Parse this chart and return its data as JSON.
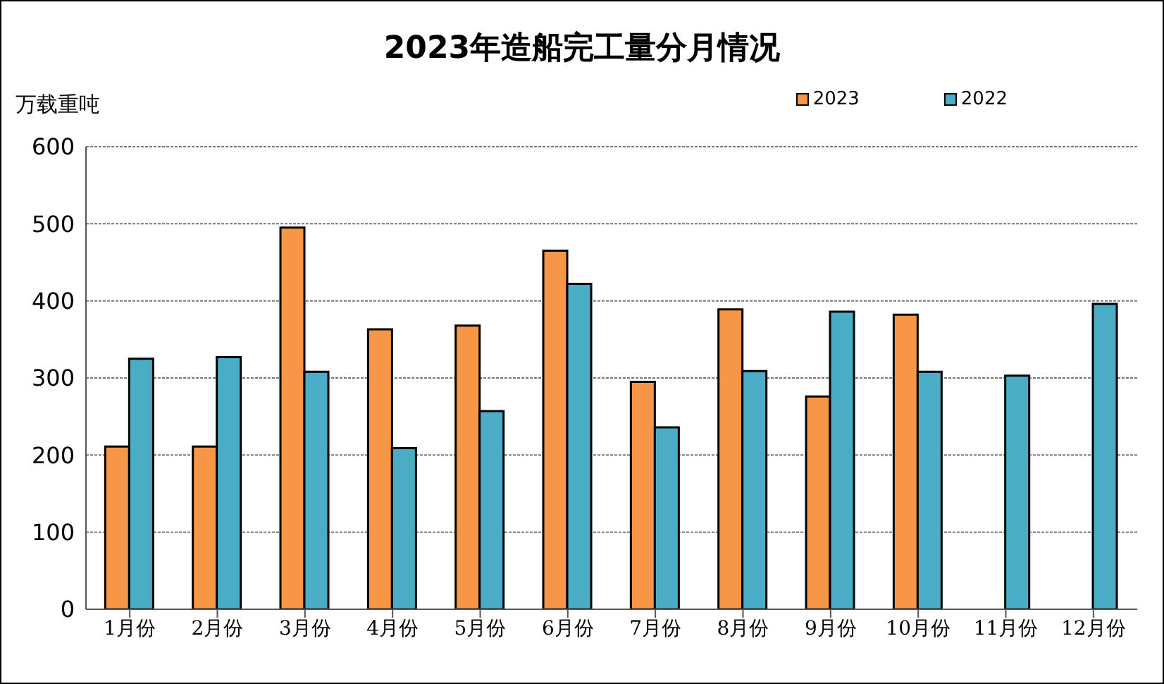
{
  "chart_data": {
    "type": "bar",
    "title": "2023年造船完工量分月情况",
    "ylabel": "万载重吨",
    "categories": [
      "1月份",
      "2月份",
      "3月份",
      "4月份",
      "5月份",
      "6月份",
      "7月份",
      "8月份",
      "9月份",
      "10月份",
      "11月份",
      "12月份"
    ],
    "series": [
      {
        "name": "2023",
        "color": "#f79646",
        "values": [
          211,
          211,
          495,
          363,
          368,
          465,
          295,
          389,
          276,
          382,
          null,
          null
        ]
      },
      {
        "name": "2022",
        "color": "#4bacc6",
        "values": [
          325,
          327,
          308,
          209,
          257,
          422,
          236,
          309,
          386,
          308,
          303,
          396
        ]
      }
    ],
    "ylim": [
      0,
      600
    ],
    "yticks": [
      0,
      100,
      200,
      300,
      400,
      500,
      600
    ],
    "grid": "y",
    "legend": "top right"
  }
}
